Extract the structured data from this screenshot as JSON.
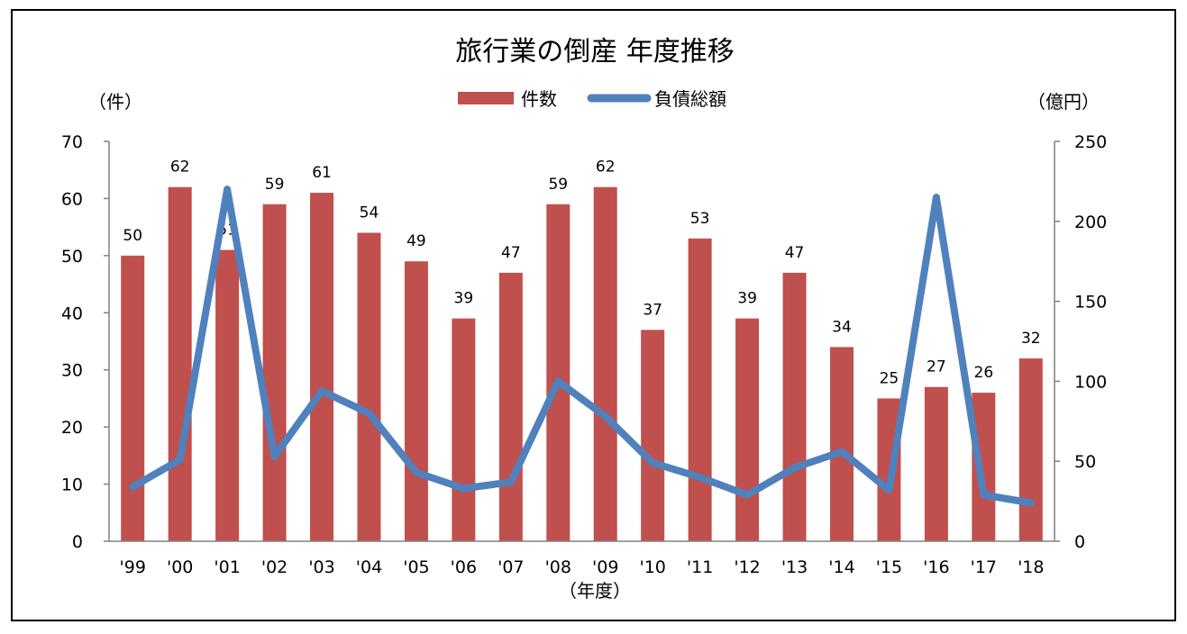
{
  "chart_data": {
    "type": "bar",
    "title": "旅行業の倒産 年度推移",
    "y_left_unit": "（件）",
    "y_right_unit": "（億円）",
    "xlabel": "（年度）",
    "categories": [
      "'99",
      "'00",
      "'01",
      "'02",
      "'03",
      "'04",
      "'05",
      "'06",
      "'07",
      "'08",
      "'09",
      "'10",
      "'11",
      "'12",
      "'13",
      "'14",
      "'15",
      "'16",
      "'17",
      "'18"
    ],
    "ylim_left": [
      0,
      70
    ],
    "yticks_left": [
      0,
      10,
      20,
      30,
      40,
      50,
      60,
      70
    ],
    "ylim_right": [
      0,
      250
    ],
    "yticks_right": [
      0,
      50,
      100,
      150,
      200,
      250
    ],
    "legend_position": "top-center",
    "grid": false,
    "series": [
      {
        "name": "件数",
        "type": "bar",
        "axis": "left",
        "color": "#c0504d",
        "values": [
          50,
          62,
          51,
          59,
          61,
          54,
          49,
          39,
          47,
          59,
          62,
          37,
          53,
          39,
          47,
          34,
          25,
          27,
          26,
          32
        ]
      },
      {
        "name": "負債総額",
        "type": "line",
        "axis": "right",
        "color": "#4f81bd",
        "values": [
          34,
          51,
          220,
          53,
          94,
          80,
          43,
          33,
          37,
          100,
          78,
          49,
          40,
          29,
          46,
          56,
          32,
          215,
          29,
          24
        ]
      }
    ]
  }
}
